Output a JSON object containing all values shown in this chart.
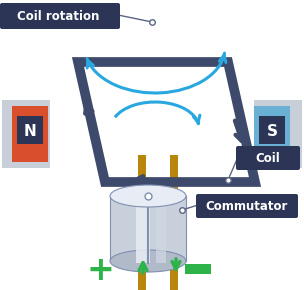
{
  "bg_color": "#ffffff",
  "coil_rotation_label": "Coil rotation",
  "coil_label": "Coil",
  "commutator_label": "Commutator",
  "N_label": "N",
  "S_label": "S",
  "label_bg": "#2d3556",
  "label_text": "#ffffff",
  "coil_color": "#3d4a6b",
  "magnet_N_face": "#d94f2b",
  "magnet_S_face": "#6aafd4",
  "magnet_body": "#c8cfd8",
  "arrow_blue": "#29a8e0",
  "green_color": "#2db34a",
  "gold_color": "#b8860b",
  "cylinder_body": "#c8d0dc",
  "cylinder_highlight": "#e8ecf4",
  "cylinder_dark": "#8090b0"
}
